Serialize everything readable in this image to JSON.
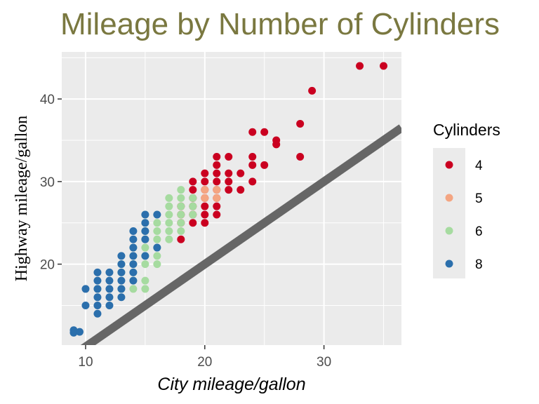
{
  "chart_data": {
    "type": "scatter",
    "title": "Mileage by Number of Cylinders",
    "xlabel": "City mileage/gallon",
    "ylabel": "Highway mileage/gallon",
    "xlim": [
      8,
      36.5
    ],
    "ylim": [
      10.2,
      45.7
    ],
    "x_ticks": [
      10,
      20,
      30
    ],
    "y_ticks": [
      20,
      30,
      40
    ],
    "grid": true,
    "legend_title": "Cylinders",
    "legend_position": "right",
    "reference_line": {
      "intercept": 0,
      "slope": 1,
      "color": "#666666"
    },
    "series": [
      {
        "name": "4",
        "color": "#ca0020",
        "points": [
          [
            35,
            44
          ],
          [
            33,
            44
          ],
          [
            29,
            41
          ],
          [
            28,
            37
          ],
          [
            28,
            33
          ],
          [
            26,
            35
          ],
          [
            26,
            34.5
          ],
          [
            25,
            36
          ],
          [
            24,
            36
          ],
          [
            24,
            33
          ],
          [
            24,
            32
          ],
          [
            25,
            32
          ],
          [
            24,
            30
          ],
          [
            23,
            31
          ],
          [
            23,
            29
          ],
          [
            22,
            33
          ],
          [
            22,
            31
          ],
          [
            22,
            30
          ],
          [
            21,
            31
          ],
          [
            21,
            30
          ],
          [
            21,
            29
          ],
          [
            21,
            28
          ],
          [
            21,
            27
          ],
          [
            21,
            26
          ],
          [
            20,
            30
          ],
          [
            20,
            29
          ],
          [
            20,
            28
          ],
          [
            20,
            27
          ],
          [
            20,
            26
          ],
          [
            19,
            29
          ],
          [
            19,
            28
          ],
          [
            19,
            27
          ],
          [
            19,
            26
          ],
          [
            19,
            25
          ],
          [
            18,
            27
          ],
          [
            18,
            26
          ],
          [
            18,
            25
          ],
          [
            18,
            23
          ],
          [
            21,
            32
          ],
          [
            22,
            29
          ],
          [
            20,
            31
          ],
          [
            19,
            30
          ],
          [
            21,
            33
          ],
          [
            20,
            25
          ]
        ]
      },
      {
        "name": "5",
        "color": "#f4a582",
        "points": [
          [
            20,
            29
          ],
          [
            20,
            28
          ],
          [
            21,
            29
          ],
          [
            21,
            28
          ]
        ]
      },
      {
        "name": "6",
        "color": "#a6dba0",
        "points": [
          [
            19,
            27
          ],
          [
            19,
            26
          ],
          [
            18,
            28
          ],
          [
            18,
            27
          ],
          [
            18,
            26
          ],
          [
            18,
            25
          ],
          [
            18,
            24
          ],
          [
            17,
            27
          ],
          [
            17,
            26
          ],
          [
            17,
            25
          ],
          [
            17,
            24
          ],
          [
            17,
            23
          ],
          [
            16,
            26
          ],
          [
            16,
            25
          ],
          [
            16,
            24
          ],
          [
            16,
            23
          ],
          [
            16,
            22
          ],
          [
            16,
            21
          ],
          [
            16,
            20
          ],
          [
            15,
            26
          ],
          [
            15,
            25
          ],
          [
            15,
            24
          ],
          [
            15,
            23
          ],
          [
            15,
            22
          ],
          [
            15,
            21
          ],
          [
            15,
            20
          ],
          [
            15,
            18
          ],
          [
            15,
            17
          ],
          [
            14,
            22
          ],
          [
            14,
            21
          ],
          [
            14,
            20
          ],
          [
            14,
            19
          ],
          [
            14,
            18
          ],
          [
            14,
            17
          ],
          [
            13,
            20
          ],
          [
            13,
            19
          ],
          [
            13,
            17
          ],
          [
            11,
            17
          ],
          [
            18,
            29
          ],
          [
            17,
            28
          ],
          [
            19,
            28
          ]
        ]
      },
      {
        "name": "8",
        "color": "#2b6fac",
        "points": [
          [
            15,
            26
          ],
          [
            15,
            25
          ],
          [
            15,
            24
          ],
          [
            15,
            23
          ],
          [
            14,
            23
          ],
          [
            14,
            22
          ],
          [
            14,
            21
          ],
          [
            14,
            20
          ],
          [
            14,
            19
          ],
          [
            14,
            18
          ],
          [
            13,
            21
          ],
          [
            13,
            20
          ],
          [
            13,
            19
          ],
          [
            13,
            18
          ],
          [
            13,
            17
          ],
          [
            12,
            18
          ],
          [
            12,
            17
          ],
          [
            12,
            16
          ],
          [
            11,
            17
          ],
          [
            11,
            16
          ],
          [
            11,
            15
          ],
          [
            11,
            14
          ],
          [
            11,
            19
          ],
          [
            9,
            12
          ],
          [
            10,
            15
          ],
          [
            10,
            17
          ],
          [
            12,
            19
          ],
          [
            13,
            16
          ],
          [
            16,
            22
          ],
          [
            16,
            26
          ],
          [
            12,
            15
          ],
          [
            14,
            24
          ],
          [
            15,
            21
          ],
          [
            11,
            18
          ],
          [
            9,
            11.7
          ],
          [
            9.5,
            11.8
          ]
        ]
      }
    ]
  }
}
